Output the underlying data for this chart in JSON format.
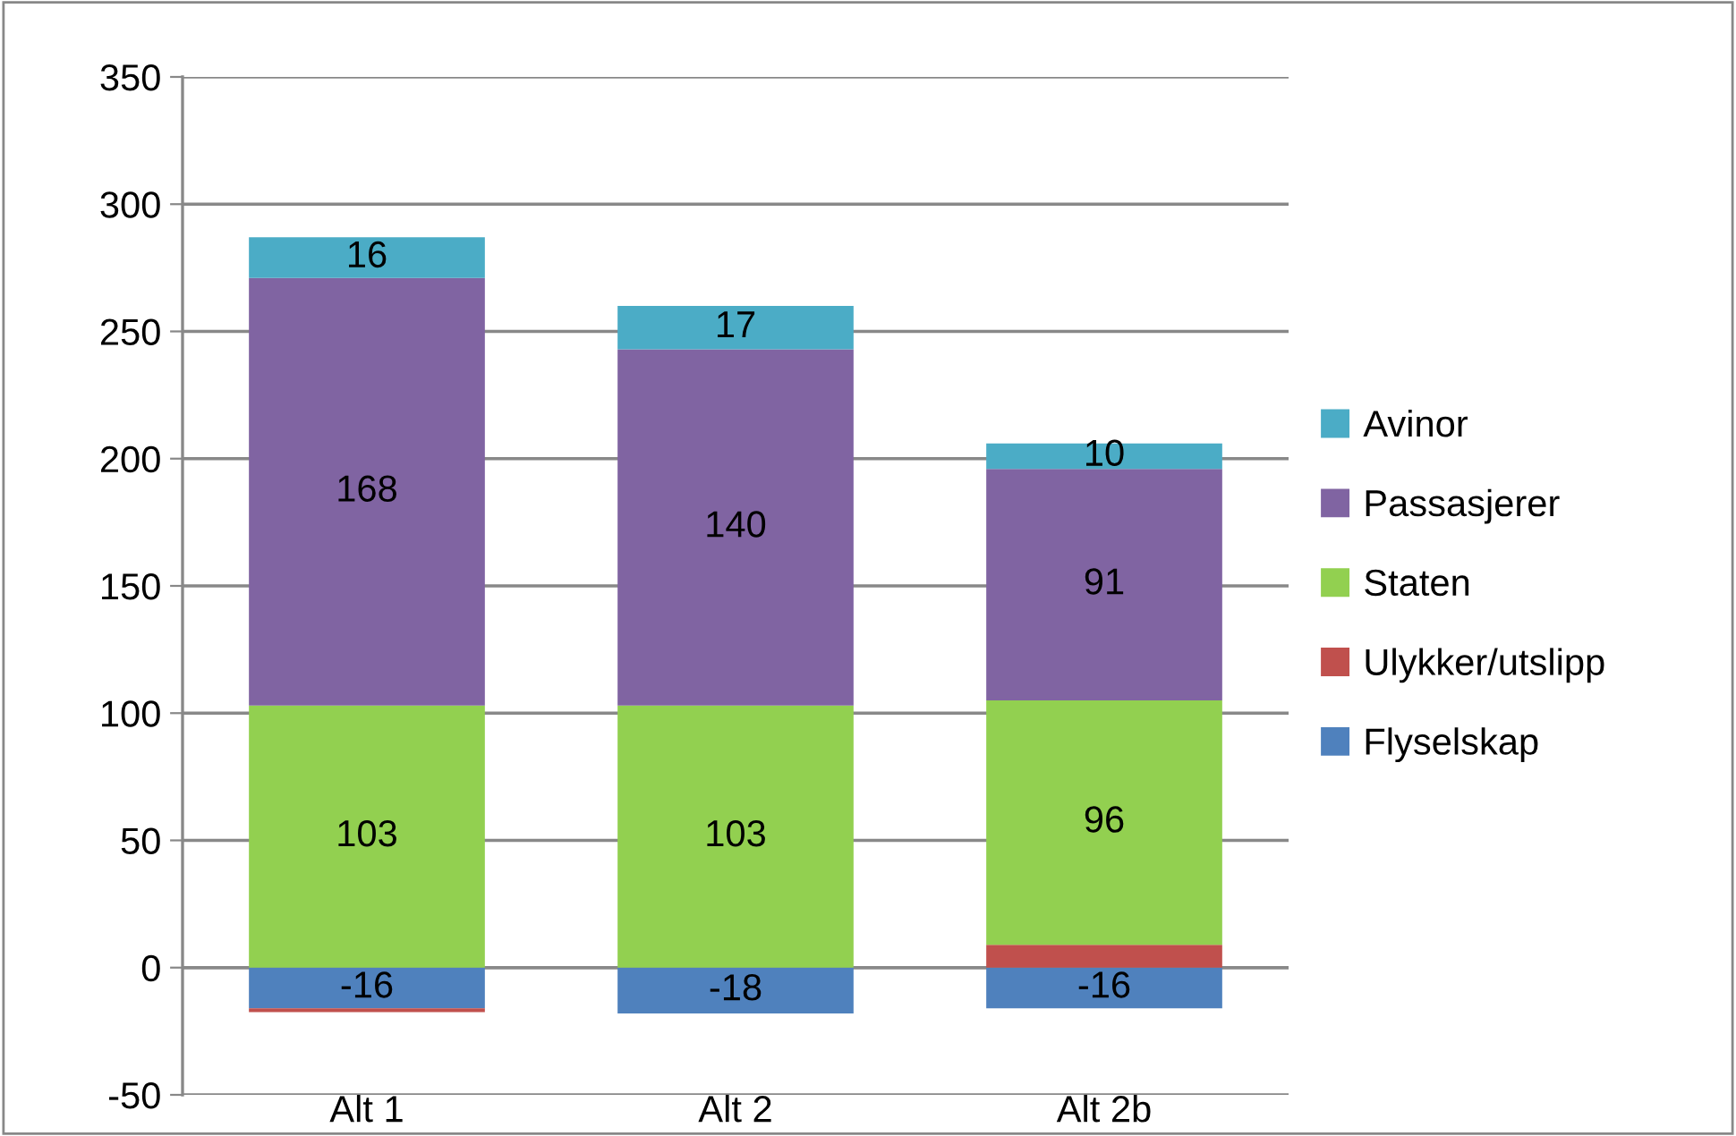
{
  "chart_data": {
    "type": "bar",
    "stacked": true,
    "categories": [
      "Alt 1",
      "Alt 2",
      "Alt 2b"
    ],
    "series": [
      {
        "name": "Flyselskap",
        "color": "#4f81bd",
        "values": [
          -16,
          -18,
          -16
        ],
        "value_labels": [
          "-16",
          "-18",
          "-16"
        ]
      },
      {
        "name": "Ulykker/utslipp",
        "color": "#c0504d",
        "values": [
          -1.5,
          0,
          9
        ],
        "value_labels": [
          null,
          null,
          null
        ]
      },
      {
        "name": "Staten",
        "color": "#92d050",
        "values": [
          103,
          103,
          96
        ],
        "value_labels": [
          "103",
          "103",
          "96"
        ]
      },
      {
        "name": "Passasjerer",
        "color": "#8064a2",
        "values": [
          168,
          140,
          91
        ],
        "value_labels": [
          "168",
          "140",
          "91"
        ]
      },
      {
        "name": "Avinor",
        "color": "#4bacc6",
        "values": [
          16,
          17,
          10
        ],
        "value_labels": [
          "16",
          "17",
          "10"
        ]
      }
    ],
    "ylim": [
      -50,
      350
    ],
    "yticks": [
      -50,
      0,
      50,
      100,
      150,
      200,
      250,
      300,
      350
    ],
    "grid": "y",
    "legend": "right"
  }
}
